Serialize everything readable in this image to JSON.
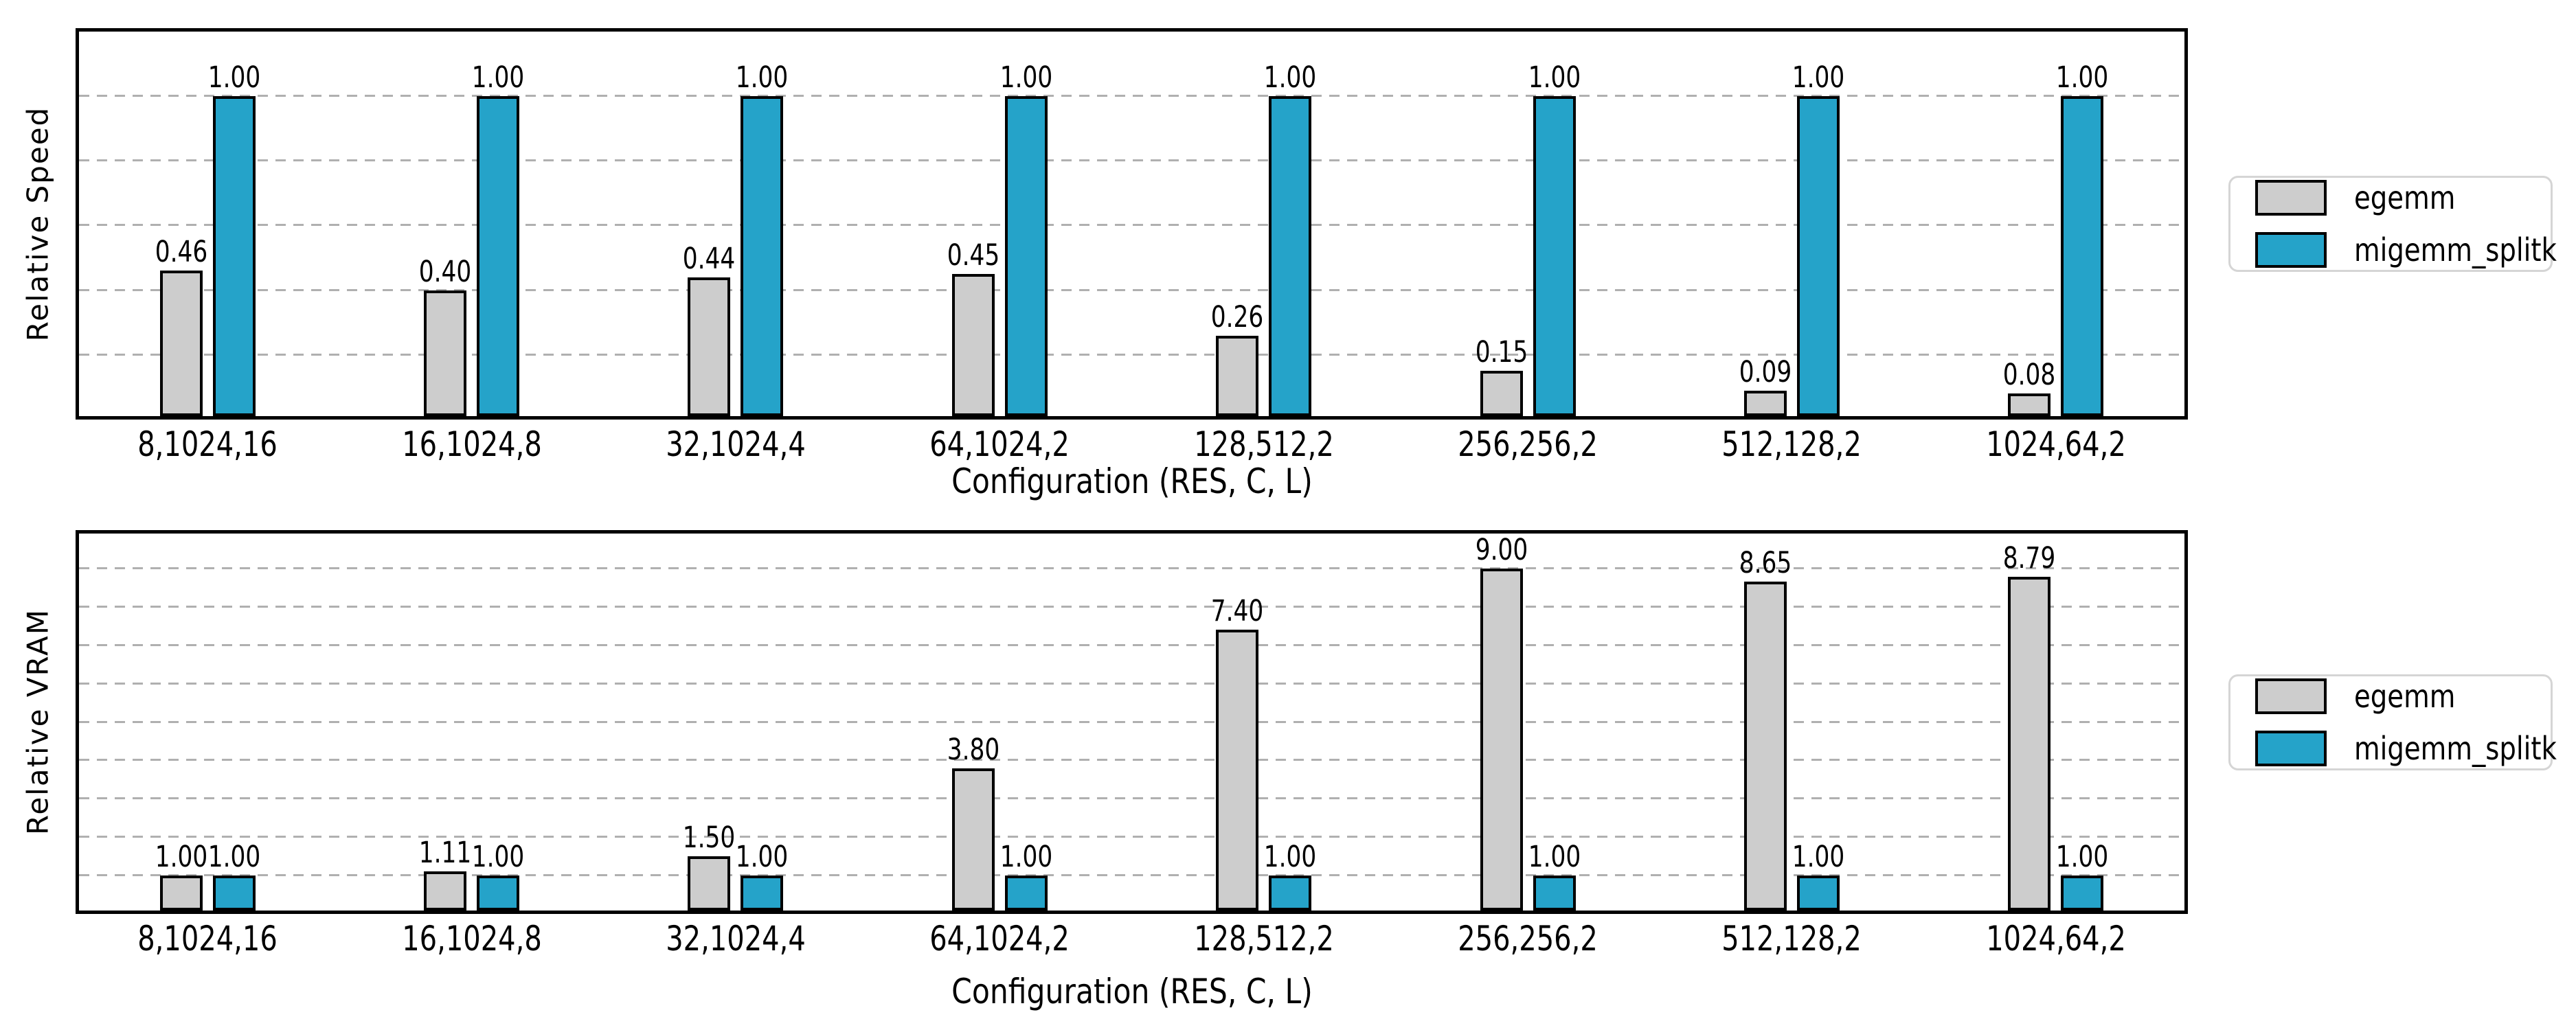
{
  "chart_data": [
    {
      "type": "bar",
      "ylabel": "Relative Speed",
      "xlabel": "Configuration (RES, C, L)",
      "categories": [
        "8,1024,16",
        "16,1024,8",
        "32,1024,4",
        "64,1024,2",
        "128,512,2",
        "256,256,2",
        "512,128,2",
        "1024,64,2"
      ],
      "series": [
        {
          "name": "egemm",
          "color": "#cdcdcd",
          "values": [
            0.46,
            0.4,
            0.44,
            0.45,
            0.26,
            0.15,
            0.09,
            0.08
          ]
        },
        {
          "name": "migemm_splitk",
          "color": "#25a3c9",
          "values": [
            1.0,
            1.0,
            1.0,
            1.0,
            1.0,
            1.0,
            1.0,
            1.0
          ]
        }
      ],
      "value_label_format": "2dp",
      "ylim": [
        0,
        1.21
      ],
      "gridlines": [
        0.2,
        0.4,
        0.6,
        0.8,
        1.0
      ],
      "grid_style": "dashed",
      "legend_position": "right-outside",
      "y_tick_labels_shown": false
    },
    {
      "type": "bar",
      "ylabel": "Relative VRAM",
      "xlabel": "Configuration (RES, C, L)",
      "categories": [
        "8,1024,16",
        "16,1024,8",
        "32,1024,4",
        "64,1024,2",
        "128,512,2",
        "256,256,2",
        "512,128,2",
        "1024,64,2"
      ],
      "series": [
        {
          "name": "egemm",
          "color": "#cdcdcd",
          "values": [
            1.0,
            1.11,
            1.5,
            3.8,
            7.4,
            9.0,
            8.65,
            8.79
          ]
        },
        {
          "name": "migemm_splitk",
          "color": "#25a3c9",
          "values": [
            1.0,
            1.0,
            1.0,
            1.0,
            1.0,
            1.0,
            1.0,
            1.0
          ]
        }
      ],
      "value_label_format": "2dp",
      "ylim": [
        0,
        10
      ],
      "gridlines": [
        1,
        2,
        3,
        4,
        5,
        6,
        7,
        8,
        9
      ],
      "grid_style": "dashed",
      "legend_position": "right-outside",
      "y_tick_labels_shown": false
    }
  ],
  "colors": {
    "bar_edge": "#000000",
    "grid": "#b0b0b0",
    "legend_border": "#d5d5d5",
    "background": "#ffffff"
  }
}
